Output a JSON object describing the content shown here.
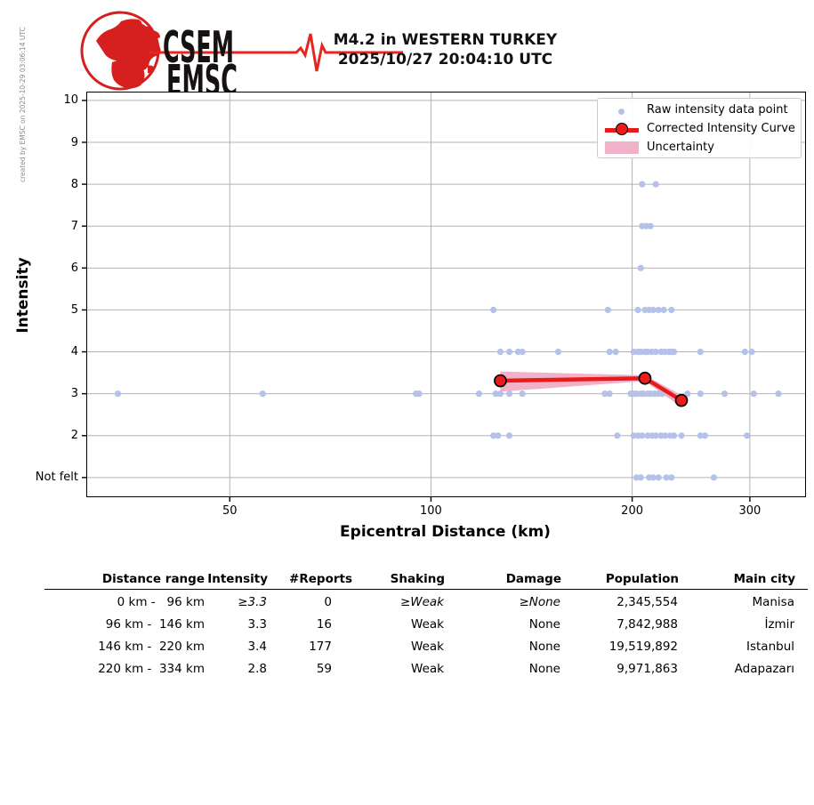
{
  "credit": "created by EMSC on 2025-10-29 03:06:14 UTC",
  "logo": {
    "acronym_top": "CSEM",
    "acronym_bottom": "EMSC"
  },
  "title": {
    "line1": "M4.2 in WESTERN TURKEY",
    "line2": "2025/10/27 20:04:10 UTC"
  },
  "chart_data": {
    "type": "scatter",
    "title": "M4.2 in WESTERN TURKEY 2025/10/27 20:04:10 UTC",
    "xlabel": "Epicentral Distance (km)",
    "ylabel": "Intensity",
    "x_scale": "log",
    "xlim": [
      30.5,
      364
    ],
    "ylim": [
      0.53,
      10.21
    ],
    "grid": true,
    "legend_position": "upper right",
    "x_ticks": [
      {
        "value": 50,
        "label": "50"
      },
      {
        "value": 100,
        "label": "100"
      },
      {
        "value": 200,
        "label": "200"
      },
      {
        "value": 300,
        "label": "300"
      }
    ],
    "y_ticks": [
      {
        "value": 10,
        "label": "10"
      },
      {
        "value": 9,
        "label": "9"
      },
      {
        "value": 8,
        "label": "8"
      },
      {
        "value": 7,
        "label": "7"
      },
      {
        "value": 6,
        "label": "6"
      },
      {
        "value": 5,
        "label": "5"
      },
      {
        "value": 4,
        "label": "4"
      },
      {
        "value": 3,
        "label": "3"
      },
      {
        "value": 2,
        "label": "2"
      },
      {
        "value": 1,
        "label": "Not felt"
      }
    ],
    "legend": [
      {
        "label": "Raw intensity data point"
      },
      {
        "label": "Corrected Intensity Curve"
      },
      {
        "label": "Uncertainty"
      }
    ],
    "colors": {
      "raw_point": "#b5c1e9",
      "curve": "#e81a1a",
      "curve_marker": "#ed1c1c",
      "uncertainty": "#f1b2c9",
      "grid": "#b3b3b3",
      "logo_red": "#d6201f"
    },
    "raw_points": [
      {
        "intensity": 8,
        "distances": [
          207,
          217
        ]
      },
      {
        "intensity": 7,
        "distances": [
          207,
          210,
          213
        ]
      },
      {
        "intensity": 6,
        "distances": [
          206
        ]
      },
      {
        "intensity": 5,
        "distances": [
          124,
          184,
          204,
          209,
          212,
          215,
          219,
          223,
          229
        ]
      },
      {
        "intensity": 4,
        "distances": [
          127,
          131,
          135,
          137,
          155,
          185,
          189,
          201,
          204,
          206,
          209,
          211,
          214,
          217,
          221,
          224,
          227,
          229,
          231,
          253,
          295,
          302
        ]
      },
      {
        "intensity": 3,
        "distances": [
          34,
          56,
          95,
          96,
          118,
          125,
          127,
          131,
          137,
          182,
          185,
          199,
          201,
          203,
          206,
          208,
          211,
          213,
          216,
          219,
          222,
          242,
          253,
          275,
          304,
          331
        ]
      },
      {
        "intensity": 2,
        "distances": [
          124,
          126,
          131,
          190,
          201,
          204,
          207,
          211,
          214,
          217,
          221,
          224,
          228,
          231,
          237,
          253,
          257,
          297
        ]
      },
      {
        "intensity": 1,
        "distances": [
          203,
          206,
          212,
          215,
          219,
          225,
          229,
          265
        ]
      }
    ],
    "corrected_curve": [
      {
        "distance": 127,
        "intensity": 3.31
      },
      {
        "distance": 209,
        "intensity": 3.37
      },
      {
        "distance": 237,
        "intensity": 2.84
      }
    ],
    "uncertainty_band": [
      {
        "distance": 127,
        "upper": 3.53,
        "lower": 3.05
      },
      {
        "distance": 209,
        "upper": 3.44,
        "lower": 3.3
      },
      {
        "distance": 237,
        "upper": 2.97,
        "lower": 2.68
      }
    ]
  },
  "table": {
    "headers": [
      "Distance range",
      "Intensity",
      "#Reports",
      "Shaking",
      "Damage",
      "Population",
      "Main city"
    ],
    "rows": [
      [
        "0 km -   96 km",
        "≥3.3",
        "0",
        "≥Weak",
        "≥None",
        "2,345,554",
        "Manisa"
      ],
      [
        "96 km -  146 km",
        "3.3",
        "16",
        "Weak",
        "None",
        "7,842,988",
        "İzmir"
      ],
      [
        "146 km -  220 km",
        "3.4",
        "177",
        "Weak",
        "None",
        "19,519,892",
        "Istanbul"
      ],
      [
        "220 km -  334 km",
        "2.8",
        "59",
        "Weak",
        "None",
        "9,971,863",
        "Adapazarı"
      ]
    ]
  }
}
